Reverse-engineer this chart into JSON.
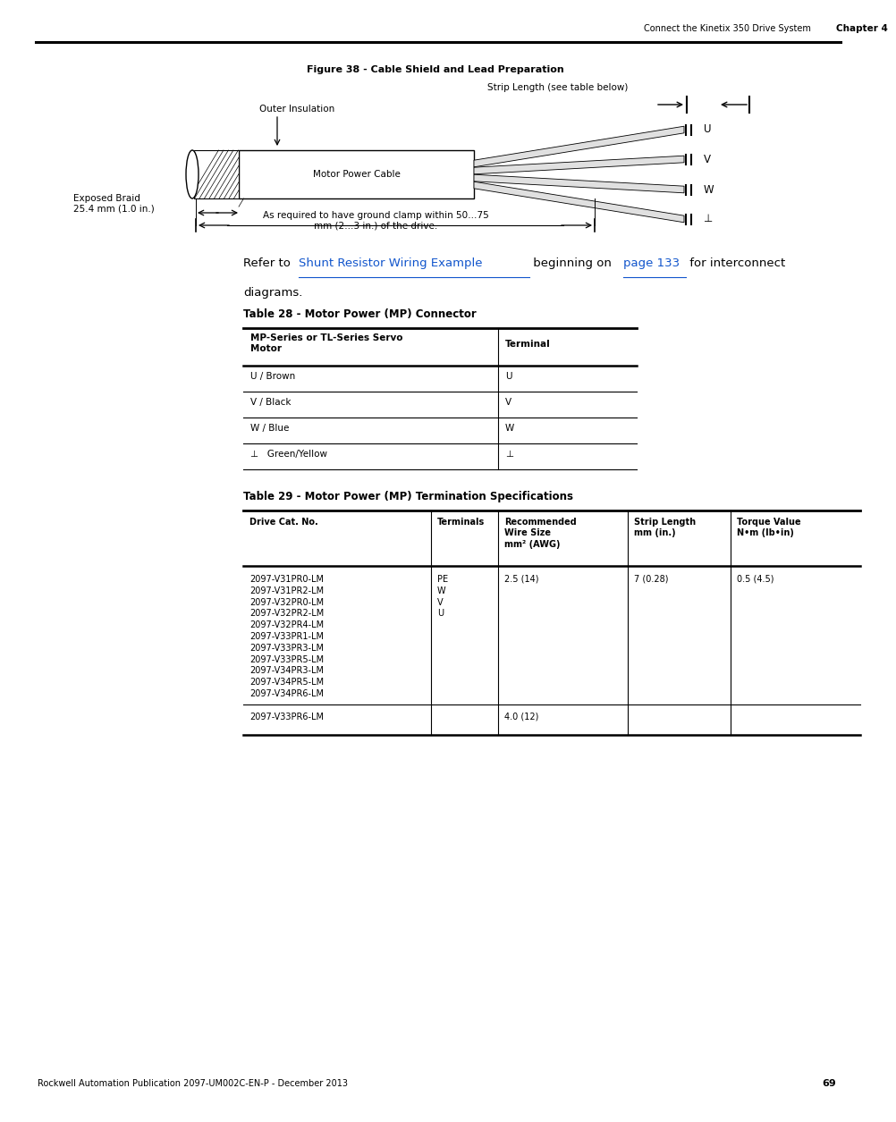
{
  "page_width": 9.54,
  "page_height": 12.35,
  "bg_color": "#ffffff",
  "header_text": "Connect the Kinetix 350 Drive System",
  "header_bold": "Chapter 4",
  "footer_text": "Rockwell Automation Publication 2097-UM002C-EN-P - December 2013",
  "footer_page": "69",
  "figure_title": "Figure 38 - Cable Shield and Lead Preparation",
  "strip_length_label": "Strip Length (see table below)",
  "outer_insulation_label": "Outer Insulation",
  "motor_power_cable_label": "Motor Power Cable",
  "exposed_braid_label": "Exposed Braid\n25.4 mm (1.0 in.)",
  "ground_clamp_label": "As required to have ground clamp within 50…75\nmm (2…3 in.) of the drive.",
  "wire_labels": [
    "U",
    "V",
    "W",
    "⊥"
  ],
  "refer_pre": "Refer to ",
  "refer_link1": "Shunt Resistor Wiring Example",
  "refer_mid": " beginning on ",
  "refer_link2": "page 133",
  "refer_post": " for interconnect",
  "refer_line2": "diagrams.",
  "table28_title": "Table 28 - Motor Power (MP) Connector",
  "table28_col1_header": "MP-Series or TL-Series Servo\nMotor",
  "table28_col2_header": "Terminal",
  "table28_rows": [
    [
      "U / Brown",
      "U"
    ],
    [
      "V / Black",
      "V"
    ],
    [
      "W / Blue",
      "W"
    ],
    [
      "⊥   Green/Yellow",
      "⊥"
    ]
  ],
  "table29_title": "Table 29 - Motor Power (MP) Termination Specifications",
  "table29_col_headers": [
    "Drive Cat. No.",
    "Terminals",
    "Recommended\nWire Size\nmm² (AWG)",
    "Strip Length\nmm (in.)",
    "Torque Value\nN•m (lb•in)"
  ],
  "table29_row1": [
    "2097-V31PR0-LM\n2097-V31PR2-LM\n2097-V32PR0-LM\n2097-V32PR2-LM\n2097-V32PR4-LM\n2097-V33PR1-LM\n2097-V33PR3-LM\n2097-V33PR5-LM\n2097-V34PR3-LM\n2097-V34PR5-LM\n2097-V34PR6-LM",
    "PE\nW\nV\nU",
    "2.5 (14)",
    "7 (0.28)",
    "0.5 (4.5)"
  ],
  "table29_row2": [
    "2097-V33PR6-LM",
    "",
    "4.0 (12)",
    "",
    ""
  ]
}
